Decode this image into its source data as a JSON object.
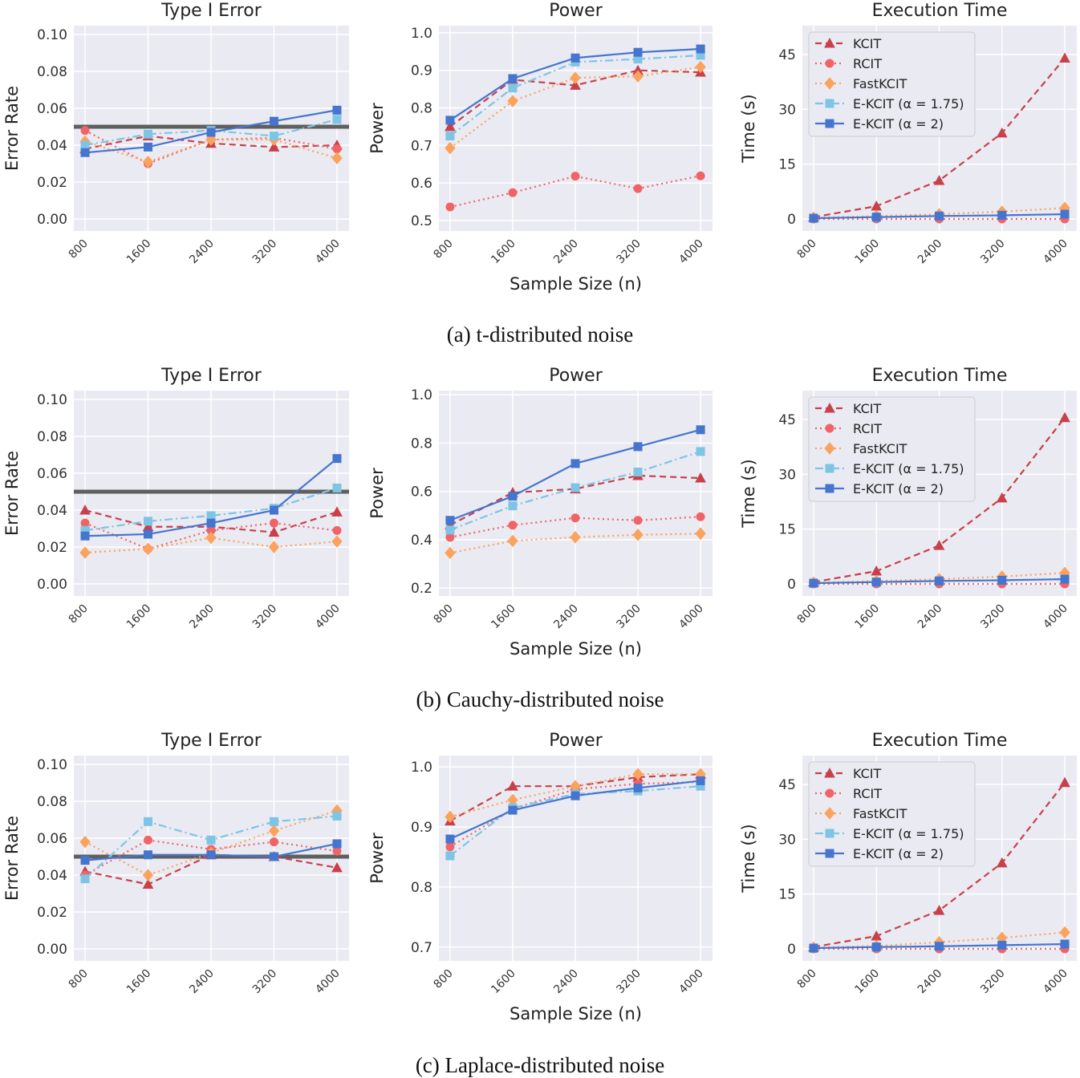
{
  "chart_data": [
    {
      "row": 0,
      "col": 0,
      "type": "line",
      "title": "Type I Error",
      "ylabel": "Error Rate",
      "xlabel": "",
      "x": [
        800,
        1600,
        2400,
        3200,
        4000
      ],
      "xlim": [
        657,
        4153
      ],
      "ylim": [
        -0.0065,
        0.1048
      ],
      "yticks": [
        "0.00",
        "0.02",
        "0.04",
        "0.06",
        "0.08",
        "0.10"
      ],
      "hline": 0.05,
      "legend": false,
      "grid": true,
      "series": [
        {
          "name": "KCIT",
          "values": [
            0.038,
            0.045,
            0.041,
            0.039,
            0.04
          ]
        },
        {
          "name": "RCIT",
          "values": [
            0.048,
            0.03,
            0.043,
            0.044,
            0.038
          ]
        },
        {
          "name": "FastKCIT",
          "values": [
            0.042,
            0.031,
            0.043,
            0.043,
            0.033
          ]
        },
        {
          "name": "E-KCIT (α = 1.75)",
          "values": [
            0.04,
            0.046,
            0.048,
            0.045,
            0.054
          ]
        },
        {
          "name": "E-KCIT (α = 2)",
          "values": [
            0.036,
            0.039,
            0.047,
            0.053,
            0.059
          ]
        }
      ]
    },
    {
      "row": 0,
      "col": 1,
      "type": "line",
      "title": "Power",
      "ylabel": "Power",
      "xlabel": "Sample Size (n)",
      "x": [
        800,
        1600,
        2400,
        3200,
        4000
      ],
      "xlim": [
        657,
        4153
      ],
      "ylim": [
        0.472,
        1.019
      ],
      "yticks": [
        "0.5",
        "0.6",
        "0.7",
        "0.8",
        "0.9",
        "1.0"
      ],
      "legend": false,
      "grid": true,
      "series": [
        {
          "name": "KCIT",
          "values": [
            0.75,
            0.875,
            0.86,
            0.9,
            0.895
          ]
        },
        {
          "name": "RCIT",
          "values": [
            0.536,
            0.574,
            0.618,
            0.585,
            0.619
          ]
        },
        {
          "name": "FastKCIT",
          "values": [
            0.693,
            0.818,
            0.88,
            0.884,
            0.909
          ]
        },
        {
          "name": "E-KCIT (α = 1.75)",
          "values": [
            0.725,
            0.853,
            0.922,
            0.93,
            0.94
          ]
        },
        {
          "name": "E-KCIT (α = 2)",
          "values": [
            0.767,
            0.878,
            0.933,
            0.948,
            0.957
          ]
        }
      ]
    },
    {
      "row": 0,
      "col": 2,
      "type": "line",
      "title": "Execution Time",
      "ylabel": "Time (s)",
      "xlabel": "",
      "x": [
        800,
        1600,
        2400,
        3200,
        4000
      ],
      "xlim": [
        657,
        4153
      ],
      "ylim": [
        -3.3,
        52.9
      ],
      "yticks": [
        "0",
        "15",
        "30",
        "45"
      ],
      "legend": "top-left",
      "grid": true,
      "series": [
        {
          "name": "KCIT",
          "values": [
            0.5,
            3.5,
            10.5,
            23.5,
            44
          ]
        },
        {
          "name": "RCIT",
          "values": [
            0,
            0,
            0,
            0,
            0
          ]
        },
        {
          "name": "FastKCIT",
          "values": [
            0.3,
            0.8,
            1.3,
            2,
            3
          ]
        },
        {
          "name": "E-KCIT (α = 1.75)",
          "values": [
            0.2,
            0.5,
            0.8,
            1,
            1.3
          ]
        },
        {
          "name": "E-KCIT (α = 2)",
          "values": [
            0.2,
            0.5,
            0.8,
            1,
            1.3
          ]
        }
      ]
    },
    {
      "row": 1,
      "col": 0,
      "type": "line",
      "title": "Type I Error",
      "ylabel": "Error Rate",
      "xlabel": "",
      "x": [
        800,
        1600,
        2400,
        3200,
        4000
      ],
      "xlim": [
        657,
        4153
      ],
      "ylim": [
        -0.0065,
        0.1048
      ],
      "yticks": [
        "0.00",
        "0.02",
        "0.04",
        "0.06",
        "0.08",
        "0.10"
      ],
      "hline": 0.05,
      "legend": false,
      "grid": true,
      "series": [
        {
          "name": "KCIT",
          "values": [
            0.04,
            0.031,
            0.031,
            0.028,
            0.039
          ]
        },
        {
          "name": "RCIT",
          "values": [
            0.033,
            0.019,
            0.029,
            0.033,
            0.029
          ]
        },
        {
          "name": "FastKCIT",
          "values": [
            0.017,
            0.019,
            0.025,
            0.02,
            0.023
          ]
        },
        {
          "name": "E-KCIT (α = 1.75)",
          "values": [
            0.029,
            0.034,
            0.037,
            0.041,
            0.052
          ]
        },
        {
          "name": "E-KCIT (α = 2)",
          "values": [
            0.026,
            0.027,
            0.033,
            0.04,
            0.068
          ]
        }
      ]
    },
    {
      "row": 1,
      "col": 1,
      "type": "line",
      "title": "Power",
      "ylabel": "Power",
      "xlabel": "Sample Size (n)",
      "x": [
        800,
        1600,
        2400,
        3200,
        4000
      ],
      "xlim": [
        657,
        4153
      ],
      "ylim": [
        0.167,
        1.017
      ],
      "yticks": [
        "0.2",
        "0.4",
        "0.6",
        "0.8",
        "1.0"
      ],
      "legend": false,
      "grid": true,
      "series": [
        {
          "name": "KCIT",
          "values": [
            0.46,
            0.595,
            0.61,
            0.665,
            0.655
          ]
        },
        {
          "name": "RCIT",
          "values": [
            0.41,
            0.46,
            0.49,
            0.48,
            0.495
          ]
        },
        {
          "name": "FastKCIT",
          "values": [
            0.345,
            0.395,
            0.41,
            0.42,
            0.425
          ]
        },
        {
          "name": "E-KCIT (α = 1.75)",
          "values": [
            0.44,
            0.54,
            0.615,
            0.68,
            0.765
          ]
        },
        {
          "name": "E-KCIT (α = 2)",
          "values": [
            0.48,
            0.58,
            0.715,
            0.785,
            0.855
          ]
        }
      ]
    },
    {
      "row": 1,
      "col": 2,
      "type": "line",
      "title": "Execution Time",
      "ylabel": "Time (s)",
      "xlabel": "",
      "x": [
        800,
        1600,
        2400,
        3200,
        4000
      ],
      "xlim": [
        657,
        4153
      ],
      "ylim": [
        -3.3,
        52.9
      ],
      "yticks": [
        "0",
        "15",
        "30",
        "45"
      ],
      "legend": "top-left",
      "grid": true,
      "series": [
        {
          "name": "KCIT",
          "values": [
            0.5,
            3.5,
            10.5,
            23.5,
            45.5
          ]
        },
        {
          "name": "RCIT",
          "values": [
            0,
            0,
            0,
            0,
            0
          ]
        },
        {
          "name": "FastKCIT",
          "values": [
            0.3,
            0.8,
            1.3,
            2,
            3
          ]
        },
        {
          "name": "E-KCIT (α = 1.75)",
          "values": [
            0.2,
            0.5,
            0.8,
            1,
            1.3
          ]
        },
        {
          "name": "E-KCIT (α = 2)",
          "values": [
            0.2,
            0.5,
            0.8,
            1,
            1.3
          ]
        }
      ]
    },
    {
      "row": 2,
      "col": 0,
      "type": "line",
      "title": "Type I Error",
      "ylabel": "Error Rate",
      "xlabel": "",
      "x": [
        800,
        1600,
        2400,
        3200,
        4000
      ],
      "xlim": [
        657,
        4153
      ],
      "ylim": [
        -0.0065,
        0.1048
      ],
      "yticks": [
        "0.00",
        "0.02",
        "0.04",
        "0.06",
        "0.08",
        "0.10"
      ],
      "hline": 0.05,
      "legend": false,
      "grid": true,
      "series": [
        {
          "name": "KCIT",
          "values": [
            0.042,
            0.035,
            0.051,
            0.05,
            0.044
          ]
        },
        {
          "name": "RCIT",
          "values": [
            0.04,
            0.059,
            0.054,
            0.058,
            0.053
          ]
        },
        {
          "name": "FastKCIT",
          "values": [
            0.058,
            0.04,
            0.052,
            0.064,
            0.075
          ]
        },
        {
          "name": "E-KCIT (α = 1.75)",
          "values": [
            0.038,
            0.069,
            0.059,
            0.069,
            0.072
          ]
        },
        {
          "name": "E-KCIT (α = 2)",
          "values": [
            0.048,
            0.051,
            0.051,
            0.05,
            0.057
          ]
        }
      ]
    },
    {
      "row": 2,
      "col": 1,
      "type": "line",
      "title": "Power",
      "ylabel": "Power",
      "xlabel": "Sample Size (n)",
      "x": [
        800,
        1600,
        2400,
        3200,
        4000
      ],
      "xlim": [
        657,
        4153
      ],
      "ylim": [
        0.677,
        1.019
      ],
      "yticks": [
        "0.7",
        "0.8",
        "0.9",
        "1.0"
      ],
      "legend": false,
      "grid": true,
      "series": [
        {
          "name": "KCIT",
          "values": [
            0.91,
            0.968,
            0.968,
            0.983,
            0.988
          ]
        },
        {
          "name": "RCIT",
          "values": [
            0.867,
            0.93,
            0.963,
            0.972,
            0.975
          ]
        },
        {
          "name": "FastKCIT",
          "values": [
            0.917,
            0.945,
            0.968,
            0.988,
            0.988
          ]
        },
        {
          "name": "E-KCIT (α = 1.75)",
          "values": [
            0.852,
            0.932,
            0.955,
            0.96,
            0.968
          ]
        },
        {
          "name": "E-KCIT (α = 2)",
          "values": [
            0.88,
            0.928,
            0.952,
            0.965,
            0.977
          ]
        }
      ]
    },
    {
      "row": 2,
      "col": 2,
      "type": "line",
      "title": "Execution Time",
      "ylabel": "Time (s)",
      "xlabel": "",
      "x": [
        800,
        1600,
        2400,
        3200,
        4000
      ],
      "xlim": [
        657,
        4153
      ],
      "ylim": [
        -3.3,
        52.9
      ],
      "yticks": [
        "0",
        "15",
        "30",
        "45"
      ],
      "legend": "top-left",
      "grid": true,
      "series": [
        {
          "name": "KCIT",
          "values": [
            0.5,
            3.5,
            10.5,
            23.5,
            45.5
          ]
        },
        {
          "name": "RCIT",
          "values": [
            0,
            0,
            0,
            0,
            0
          ]
        },
        {
          "name": "FastKCIT",
          "values": [
            0.3,
            0.8,
            1.8,
            3,
            4.5
          ]
        },
        {
          "name": "E-KCIT (α = 1.75)",
          "values": [
            0.2,
            0.5,
            0.7,
            1,
            1.3
          ]
        },
        {
          "name": "E-KCIT (α = 2)",
          "values": [
            0.2,
            0.5,
            0.7,
            1,
            1.3
          ]
        }
      ]
    }
  ],
  "captions": [
    "(a) t-distributed noise",
    "(b) Cauchy-distributed noise",
    "(c) Laplace-distributed noise"
  ],
  "styles": {
    "KCIT": {
      "color": "#c8404a",
      "dash": "8,5",
      "marker": "triangle"
    },
    "RCIT": {
      "color": "#f06467",
      "dash": "2,4",
      "marker": "circle"
    },
    "FastKCIT": {
      "color": "#fba25c",
      "dash": "2,4",
      "marker": "diamond"
    },
    "E-KCIT (α = 1.75)": {
      "color": "#7ec4e4",
      "dash": "10,4,2,4",
      "marker": "square"
    },
    "E-KCIT (α = 2)": {
      "color": "#4575cf",
      "dash": "",
      "marker": "square"
    }
  },
  "hline_color": "#5f5f5f",
  "background": "#eaeaf2"
}
